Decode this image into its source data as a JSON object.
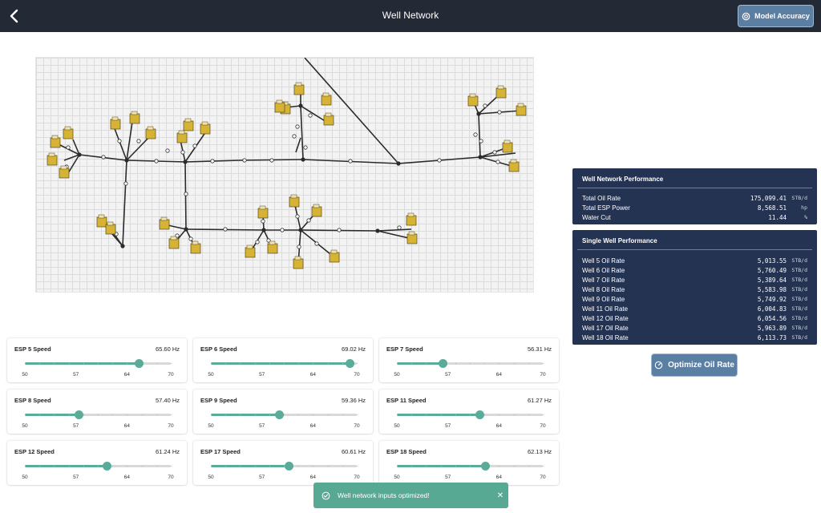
{
  "header": {
    "title": "Well Network",
    "back_icon": "chevron-left-icon",
    "accuracy_label": "Model Accuracy",
    "accuracy_icon": "target-icon"
  },
  "network_performance": {
    "title": "Well Network Performance",
    "rows": [
      {
        "label": "Total Oil Rate",
        "value": "175,099.41",
        "unit": "STB/d"
      },
      {
        "label": "Total ESP Power",
        "value": "8,568.51",
        "unit": "hp"
      },
      {
        "label": "Water Cut",
        "value": "11.44",
        "unit": "%"
      }
    ]
  },
  "single_well_performance": {
    "title": "Single Well Performance",
    "rows": [
      {
        "label": "Well 5 Oil Rate",
        "value": "5,013.55",
        "unit": "STB/d"
      },
      {
        "label": "Well 6 Oil Rate",
        "value": "5,760.49",
        "unit": "STB/d"
      },
      {
        "label": "Well 7 Oil Rate",
        "value": "5,389.64",
        "unit": "STB/d"
      },
      {
        "label": "Well 8 Oil Rate",
        "value": "5,583.98",
        "unit": "STB/d"
      },
      {
        "label": "Well 9 Oil Rate",
        "value": "5,749.92",
        "unit": "STB/d"
      },
      {
        "label": "Well 11 Oil Rate",
        "value": "6,004.83",
        "unit": "STB/d"
      },
      {
        "label": "Well 12 Oil Rate",
        "value": "6,054.56",
        "unit": "STB/d"
      },
      {
        "label": "Well 17 Oil Rate",
        "value": "5,963.89",
        "unit": "STB/d"
      },
      {
        "label": "Well 18 Oil Rate",
        "value": "6,113.73",
        "unit": "STB/d"
      }
    ]
  },
  "optimize_label": "Optimize Oil Rate",
  "optimize_icon": "gauge-icon",
  "sliders": {
    "min": 50,
    "max": 70,
    "tick_labels": [
      "50",
      "57",
      "64",
      "70"
    ],
    "items": [
      {
        "label": "ESP 5 Speed",
        "value_text": "65.60 Hz",
        "value": 65.6
      },
      {
        "label": "ESP 6 Speed",
        "value_text": "69.02 Hz",
        "value": 69.02
      },
      {
        "label": "ESP 7 Speed",
        "value_text": "56.31 Hz",
        "value": 56.31
      },
      {
        "label": "ESP 8 Speed",
        "value_text": "57.40 Hz",
        "value": 57.4
      },
      {
        "label": "ESP 9 Speed",
        "value_text": "59.36 Hz",
        "value": 59.36
      },
      {
        "label": "ESP 11 Speed",
        "value_text": "61.27 Hz",
        "value": 61.27
      },
      {
        "label": "ESP 12 Speed",
        "value_text": "61.24 Hz",
        "value": 61.24
      },
      {
        "label": "ESP 17 Speed",
        "value_text": "60.61 Hz",
        "value": 60.61
      },
      {
        "label": "ESP 18 Speed",
        "value_text": "62.13 Hz",
        "value": 62.13
      }
    ]
  },
  "toast": {
    "message": "Well network inputs optimized!",
    "icon": "check-circle-icon",
    "close_icon": "close-icon"
  },
  "colors": {
    "header": "#232a36",
    "panel": "#243352",
    "button": "#5b7ea3",
    "accent": "#5aac99"
  }
}
